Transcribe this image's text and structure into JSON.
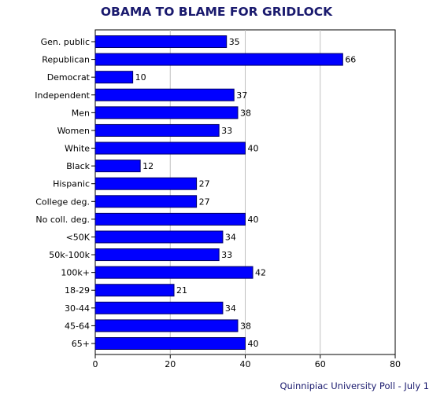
{
  "chart_data": {
    "type": "bar",
    "orientation": "horizontal",
    "title": "OBAMA TO BLAME FOR GRIDLOCK",
    "source": "Quinnipiac University Poll - July 1",
    "categories": [
      "Gen. public",
      "Republican",
      "Democrat",
      "Independent",
      "Men",
      "Women",
      "White",
      "Black",
      "Hispanic",
      "College deg.",
      "No coll. deg.",
      "<50K",
      "50k-100k",
      "100k+",
      "18-29",
      "30-44",
      "45-64",
      "65+"
    ],
    "values": [
      35,
      66,
      10,
      37,
      38,
      33,
      40,
      12,
      27,
      27,
      40,
      34,
      33,
      42,
      21,
      34,
      38,
      40
    ],
    "xlim": [
      0,
      80
    ],
    "xticks": [
      0,
      20,
      40,
      60,
      80
    ],
    "xlabel": "",
    "ylabel": "",
    "grid": true,
    "bar_color": "#0000ff"
  }
}
